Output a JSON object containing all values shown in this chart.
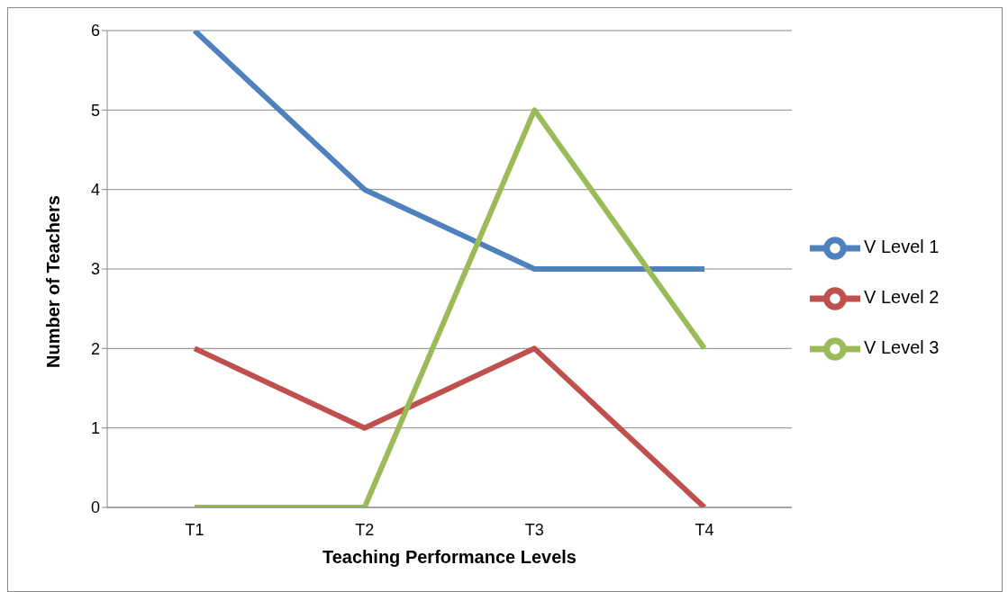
{
  "chart_data": {
    "type": "line",
    "xlabel": "Teaching Performance Levels",
    "ylabel": "Number of Teachers",
    "categories": [
      "T1",
      "T2",
      "T3",
      "T4"
    ],
    "series": [
      {
        "name": "V Level 1",
        "color": "#4f81bd",
        "values": [
          6,
          4,
          3,
          3
        ]
      },
      {
        "name": "V Level 2",
        "color": "#c0504d",
        "values": [
          2,
          1,
          2,
          0
        ]
      },
      {
        "name": "V Level 3",
        "color": "#9bbb59",
        "values": [
          0,
          0,
          5,
          2
        ]
      }
    ],
    "ylim": [
      0,
      6
    ],
    "yticks": [
      0,
      1,
      2,
      3,
      4,
      5,
      6
    ],
    "grid": "y",
    "legend": "right",
    "marker": "none",
    "line_style": "solid"
  }
}
